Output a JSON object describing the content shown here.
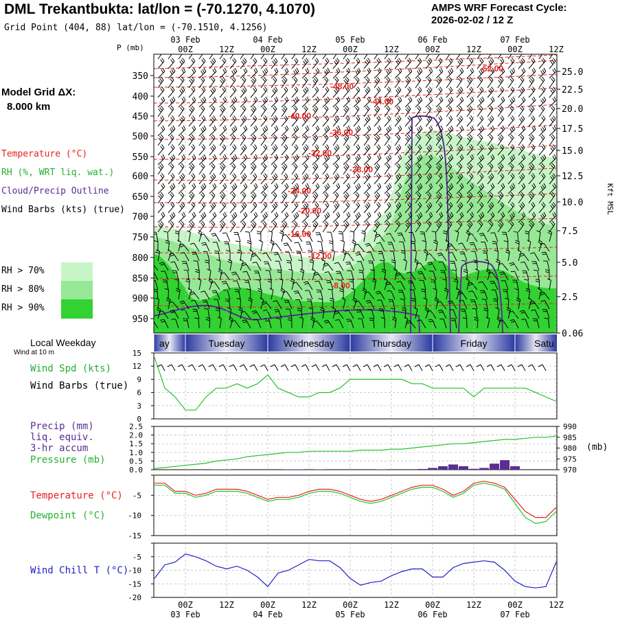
{
  "header": {
    "title": "DML Trekantbukta:  lat/lon = (-70.1270, 4.1070)",
    "subtitle": "Grid Point (404, 88) lat/lon = (-70.1510, 4.1256)",
    "cycle_label": "AMPS WRF Forecast Cycle:",
    "cycle_value": "2026-02-02 / 12  Z"
  },
  "model": {
    "label": "Model Grid ΔX:",
    "value": "8.000 km"
  },
  "legend": {
    "temperature": "Temperature (°C)",
    "rh": "RH (%, WRT liq. wat.)",
    "cloud": "Cloud/Precip Outline",
    "wind": "Wind Barbs (kts) (true)",
    "rh70": "RH > 70%",
    "rh80": "RH > 80%",
    "rh90": "RH > 90%"
  },
  "colors": {
    "temperature": "#e8201c",
    "rh70": "#c8f5c8",
    "rh80": "#96e896",
    "rh90": "#32d232",
    "cloud": "#5a2d91",
    "dewpoint": "#22c22e",
    "windchill": "#1e1ec8",
    "precip": "#5a2d91",
    "weekday_dark": "#2b3aa0",
    "weekday_light": "#e8e8f4"
  },
  "time_axis": {
    "top_dates": [
      "03 Feb",
      "04 Feb",
      "05 Feb",
      "06 Feb",
      "07 Feb"
    ],
    "bottom_dates": [
      "03 Feb",
      "04 Feb",
      "05 Feb",
      "06 Feb",
      "07 Feb"
    ],
    "hour_labels": [
      "00Z",
      "12Z",
      "00Z",
      "12Z",
      "00Z",
      "12Z",
      "00Z",
      "12Z",
      "00Z",
      "12Z"
    ]
  },
  "weekday_strip": {
    "label": "Local Weekday",
    "days": [
      "ay",
      "Tuesday",
      "Wednesday",
      "Thursday",
      "Friday",
      "Satu"
    ]
  },
  "chart_data": [
    {
      "type": "heatmap",
      "panel": "cross-section",
      "ylabel": "P (mb)",
      "ylabel_right": "Kft MSL",
      "pressure_ticks": [
        "350",
        "400",
        "450",
        "500",
        "550",
        "600",
        "650",
        "700",
        "750",
        "800",
        "850",
        "900",
        "950"
      ],
      "height_ticks": [
        "25.0",
        "22.5",
        "20.0",
        "17.5",
        "15.0",
        "12.5",
        "10.0",
        "7.5",
        "5.0",
        "2.5",
        "0.06"
      ],
      "temperature_contour_labels": [
        "-52.00",
        "-48.00",
        "-44.00",
        "-40.00",
        "-36.00",
        "-32.00",
        "-28.00",
        "-24.00",
        "-20.00",
        "-16.00",
        "-12.00",
        "-8.00"
      ],
      "x_hours": [
        0,
        12,
        24,
        36,
        48,
        60,
        72,
        84,
        96,
        108
      ]
    },
    {
      "type": "line",
      "panel": "wind",
      "label_top": "Wind at 10 m",
      "series_label_1": "Wind Spd (kts)",
      "series_label_2": "Wind Barbs (true)",
      "y_ticks": [
        "15",
        "12",
        "9",
        "6",
        "3",
        "0"
      ],
      "ylim": [
        0,
        15
      ],
      "x_hours": [
        -9,
        -6,
        -3,
        0,
        3,
        6,
        9,
        12,
        15,
        18,
        21,
        24,
        27,
        30,
        33,
        36,
        39,
        42,
        45,
        48,
        51,
        54,
        57,
        60,
        63,
        66,
        69,
        72,
        75,
        78,
        81,
        84,
        87,
        90,
        93,
        96,
        99,
        102,
        105,
        108
      ],
      "values": [
        14,
        7,
        5,
        2,
        2,
        5,
        7,
        7,
        8,
        7,
        8,
        10,
        7,
        6,
        5,
        5,
        6,
        6,
        7,
        9,
        9,
        9,
        9,
        9,
        9,
        8,
        8,
        7,
        7,
        7,
        7,
        5,
        7,
        7,
        7,
        7,
        7,
        6,
        5,
        4
      ]
    },
    {
      "type": "bar",
      "panel": "precip-pressure",
      "series_label_1": "Precip (mm)",
      "series_label_2": "liq. equiv.",
      "series_label_3": "3-hr accum",
      "series_label_4": "Pressure (mb)",
      "right_unit": "(mb)",
      "precip_ticks": [
        "2.5",
        "2.0",
        "1.5",
        "1.0",
        "0.5",
        "0.0"
      ],
      "pressure_ticks": [
        "990",
        "985",
        "980",
        "975",
        "970"
      ],
      "x_hours": [
        -9,
        -6,
        -3,
        0,
        3,
        6,
        9,
        12,
        15,
        18,
        21,
        24,
        27,
        30,
        33,
        36,
        39,
        42,
        45,
        48,
        51,
        54,
        57,
        60,
        63,
        66,
        69,
        72,
        75,
        78,
        81,
        84,
        87,
        90,
        93,
        96,
        99,
        102,
        105,
        108
      ],
      "precip": [
        0,
        0,
        0,
        0,
        0,
        0,
        0.02,
        0.02,
        0,
        0,
        0,
        0,
        0,
        0.02,
        0.02,
        0,
        0.02,
        0,
        0,
        0,
        0,
        0,
        0.02,
        0,
        0,
        0,
        0.04,
        0.1,
        0.2,
        0.3,
        0.2,
        0.05,
        0.1,
        0.35,
        0.55,
        0.2,
        0,
        0,
        0,
        0
      ],
      "pressure": [
        970.5,
        971,
        971.5,
        972,
        972.5,
        973,
        974,
        974.5,
        975,
        976,
        976.5,
        977,
        977.5,
        978,
        978,
        978.5,
        978.5,
        978.5,
        978.5,
        978.5,
        979,
        979,
        979,
        979.5,
        979.5,
        980,
        980.5,
        981,
        981.5,
        982,
        982,
        982.5,
        983,
        983.5,
        984,
        984,
        984.5,
        985,
        985,
        985.5
      ]
    },
    {
      "type": "line",
      "panel": "temperature",
      "series_label_1": "Temperature (°C)",
      "series_label_2": "Dewpoint (°C)",
      "y_ticks": [
        "-5",
        "-10",
        "-15"
      ],
      "ylim": [
        -15,
        0
      ],
      "x_hours": [
        -9,
        -6,
        -3,
        0,
        3,
        6,
        9,
        12,
        15,
        18,
        21,
        24,
        27,
        30,
        33,
        36,
        39,
        42,
        45,
        48,
        51,
        54,
        57,
        60,
        63,
        66,
        69,
        72,
        75,
        78,
        81,
        84,
        87,
        90,
        93,
        96,
        99,
        102,
        105,
        108
      ],
      "temperature": [
        -2,
        -2,
        -4,
        -4,
        -5,
        -4.5,
        -3.5,
        -3.5,
        -3.5,
        -4,
        -5,
        -6,
        -5.5,
        -5.5,
        -5,
        -4,
        -3.5,
        -3.5,
        -4,
        -5,
        -6,
        -6.5,
        -6,
        -5,
        -4,
        -3,
        -2.5,
        -2.5,
        -3.5,
        -5,
        -4,
        -2,
        -1.5,
        -2,
        -3,
        -6,
        -9,
        -10.5,
        -10.5,
        -8
      ],
      "dewpoint": [
        -2.5,
        -2.5,
        -4.5,
        -4.5,
        -5.5,
        -5,
        -4,
        -4,
        -4,
        -4.5,
        -5.5,
        -6.5,
        -6,
        -6,
        -5.5,
        -4.5,
        -4,
        -4,
        -4.5,
        -5.5,
        -6.5,
        -7,
        -6.5,
        -5.5,
        -4.5,
        -3.5,
        -3,
        -3,
        -4,
        -5.5,
        -4.5,
        -2.5,
        -2,
        -2.5,
        -3.5,
        -7,
        -10.5,
        -12,
        -11.5,
        -9
      ]
    },
    {
      "type": "line",
      "panel": "windchill",
      "series_label": "Wind Chill T (°C)",
      "y_ticks": [
        "-5",
        "-10",
        "-15",
        "-20"
      ],
      "ylim": [
        -20,
        0
      ],
      "x_hours": [
        -9,
        -6,
        -3,
        0,
        3,
        6,
        9,
        12,
        15,
        18,
        21,
        24,
        27,
        30,
        33,
        36,
        39,
        42,
        45,
        48,
        51,
        54,
        57,
        60,
        63,
        66,
        69,
        72,
        75,
        78,
        81,
        84,
        87,
        90,
        93,
        96,
        99,
        102,
        105,
        108
      ],
      "values": [
        -13,
        -8,
        -7,
        -4,
        -5,
        -6.5,
        -8.5,
        -9.5,
        -8.5,
        -10,
        -12.5,
        -16,
        -11,
        -10,
        -8,
        -6,
        -6.5,
        -6.5,
        -9,
        -13,
        -15.5,
        -14.5,
        -14,
        -12,
        -10.5,
        -9.5,
        -9.5,
        -12.5,
        -12.5,
        -9,
        -7.5,
        -7,
        -6.5,
        -7,
        -10,
        -14,
        -16,
        -16.5,
        -16,
        -7
      ]
    }
  ]
}
